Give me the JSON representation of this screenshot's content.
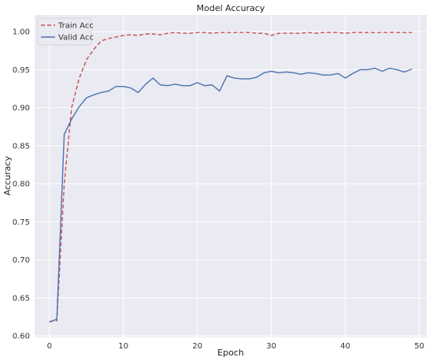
{
  "chart_data": {
    "type": "line",
    "title": "Model Accuracy",
    "xlabel": "Epoch",
    "ylabel": "Accuracy",
    "xlim": [
      -2,
      51
    ],
    "ylim": [
      0.598,
      1.022
    ],
    "xticks": [
      0,
      10,
      20,
      30,
      40,
      50
    ],
    "yticks": [
      0.6,
      0.65,
      0.7,
      0.75,
      0.8,
      0.85,
      0.9,
      0.95,
      1.0
    ],
    "ytick_labels": [
      "0.60",
      "0.65",
      "0.70",
      "0.75",
      "0.80",
      "0.85",
      "0.90",
      "0.95",
      "1.00"
    ],
    "grid": true,
    "legend_position": "top-left",
    "x": [
      0,
      1,
      2,
      3,
      4,
      5,
      6,
      7,
      8,
      9,
      10,
      11,
      12,
      13,
      14,
      15,
      16,
      17,
      18,
      19,
      20,
      21,
      22,
      23,
      24,
      25,
      26,
      27,
      28,
      29,
      30,
      31,
      32,
      33,
      34,
      35,
      36,
      37,
      38,
      39,
      40,
      41,
      42,
      43,
      44,
      45,
      46,
      47,
      48,
      49
    ],
    "series": [
      {
        "name": "Train Acc",
        "color": "#c44e52",
        "style": "dashed",
        "values": [
          0.619,
          0.62,
          0.8,
          0.9,
          0.938,
          0.963,
          0.977,
          0.988,
          0.991,
          0.993,
          0.995,
          0.996,
          0.995,
          0.997,
          0.997,
          0.996,
          0.998,
          0.999,
          0.998,
          0.998,
          0.999,
          0.999,
          0.998,
          0.999,
          0.999,
          0.999,
          0.999,
          0.999,
          0.998,
          0.998,
          0.995,
          0.998,
          0.998,
          0.998,
          0.998,
          0.999,
          0.998,
          0.999,
          0.999,
          0.999,
          0.998,
          0.999,
          0.999,
          0.999,
          0.999,
          0.999,
          0.999,
          0.999,
          0.999,
          0.999
        ]
      },
      {
        "name": "Valid Acc",
        "color": "#4c72b0",
        "style": "solid",
        "values": [
          0.618,
          0.622,
          0.865,
          0.885,
          0.901,
          0.913,
          0.917,
          0.92,
          0.922,
          0.928,
          0.928,
          0.926,
          0.92,
          0.931,
          0.939,
          0.93,
          0.929,
          0.931,
          0.929,
          0.929,
          0.933,
          0.929,
          0.93,
          0.922,
          0.942,
          0.939,
          0.938,
          0.938,
          0.94,
          0.946,
          0.948,
          0.946,
          0.947,
          0.946,
          0.944,
          0.946,
          0.945,
          0.943,
          0.943,
          0.945,
          0.939,
          0.945,
          0.95,
          0.95,
          0.952,
          0.948,
          0.952,
          0.95,
          0.947,
          0.951
        ]
      }
    ]
  }
}
